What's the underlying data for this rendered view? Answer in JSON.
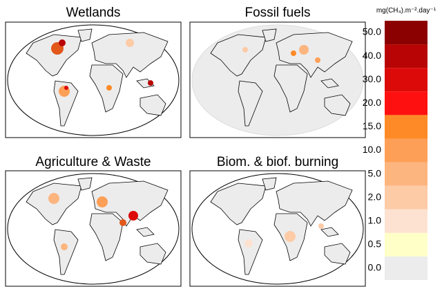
{
  "panels": [
    {
      "title": "Wetlands"
    },
    {
      "title": "Fossil fuels"
    },
    {
      "title": "Agriculture & Waste"
    },
    {
      "title": "Biom. & biof. burning"
    }
  ],
  "colorbar": {
    "title": "mg(CH₄).m⁻².day⁻¹",
    "ticks": [
      {
        "value": 0,
        "label": "0.0"
      },
      {
        "value": 0.5,
        "label": "0.5"
      },
      {
        "value": 1,
        "label": "1.0"
      },
      {
        "value": 2,
        "label": "2.0"
      },
      {
        "value": 5,
        "label": "5.0"
      },
      {
        "value": 10,
        "label": "10.0"
      },
      {
        "value": 15,
        "label": "15.0"
      },
      {
        "value": 20,
        "label": "20.0"
      },
      {
        "value": 30,
        "label": "30.0"
      },
      {
        "value": 40,
        "label": "40.0"
      },
      {
        "value": 50,
        "label": "50.0"
      }
    ],
    "colors": [
      "#ececec",
      "#ffffc8",
      "#fde2d2",
      "#fdcba6",
      "#fdb57f",
      "#fd9f57",
      "#fd8a26",
      "#ff1010",
      "#dd0a0a",
      "#b80404",
      "#8b0000"
    ]
  }
}
